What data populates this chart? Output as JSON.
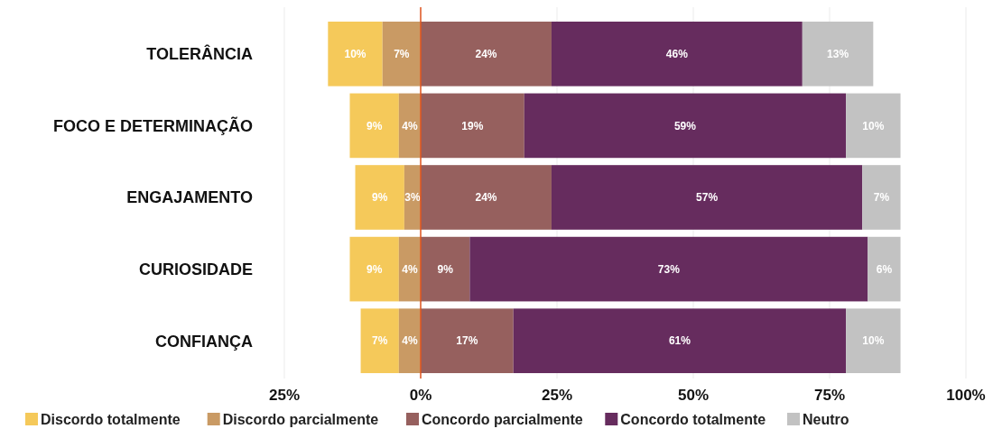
{
  "chart_data": {
    "type": "bar",
    "orientation": "horizontal",
    "categories": [
      "TOLERÂNCIA",
      "FOCO E DETERMINAÇÃO",
      "ENGAJAMENTO",
      "CURIOSIDADE",
      "CONFIANÇA"
    ],
    "series": [
      {
        "name": "Discordo totalmente",
        "color": "#f5c95a",
        "values": [
          10,
          9,
          9,
          9,
          7
        ],
        "base": [
          -17,
          -13,
          -12,
          -13,
          -11
        ],
        "value_labels": [
          "10%",
          "9%",
          "9%",
          "9%",
          "7%"
        ]
      },
      {
        "name": "Discordo parcialmente",
        "color": "#c99a64",
        "values": [
          7,
          4,
          3,
          4,
          4
        ],
        "base": [
          -7,
          -4,
          -3,
          -4,
          -4
        ],
        "value_labels": [
          "7%",
          "4%",
          "3%",
          "4%",
          "4%"
        ]
      },
      {
        "name": "Concordo parcialmente",
        "color": "#96605e",
        "values": [
          24,
          19,
          24,
          9,
          17
        ],
        "base": [
          0,
          0,
          0,
          0,
          0
        ],
        "value_labels": [
          "24%",
          "19%",
          "24%",
          "9%",
          "17%"
        ]
      },
      {
        "name": "Concordo totalmente",
        "color": "#662c5e",
        "values": [
          46,
          59,
          57,
          73,
          61
        ],
        "base": [
          24,
          19,
          24,
          9,
          17
        ],
        "value_labels": [
          "46%",
          "59%",
          "57%",
          "73%",
          "61%"
        ]
      },
      {
        "name": "Neutro",
        "color": "#c2c2c2",
        "values": [
          13,
          10,
          7,
          6,
          10
        ],
        "base": [
          70,
          78,
          81,
          82,
          78
        ],
        "value_labels": [
          "13%",
          "10%",
          "7%",
          "6%",
          "10%"
        ]
      }
    ],
    "xlim": [
      -25,
      100
    ],
    "xticks": [
      {
        "value": -25,
        "label": "25%"
      },
      {
        "value": 0,
        "label": "0%"
      },
      {
        "value": 25,
        "label": "25%"
      },
      {
        "value": 50,
        "label": "50%"
      },
      {
        "value": 75,
        "label": "75%"
      },
      {
        "value": 100,
        "label": "100%"
      }
    ],
    "grid": "x",
    "legend": "bottom",
    "ref_lines": [
      {
        "axis": "x",
        "value": 0,
        "color": "#e0551f"
      }
    ]
  }
}
